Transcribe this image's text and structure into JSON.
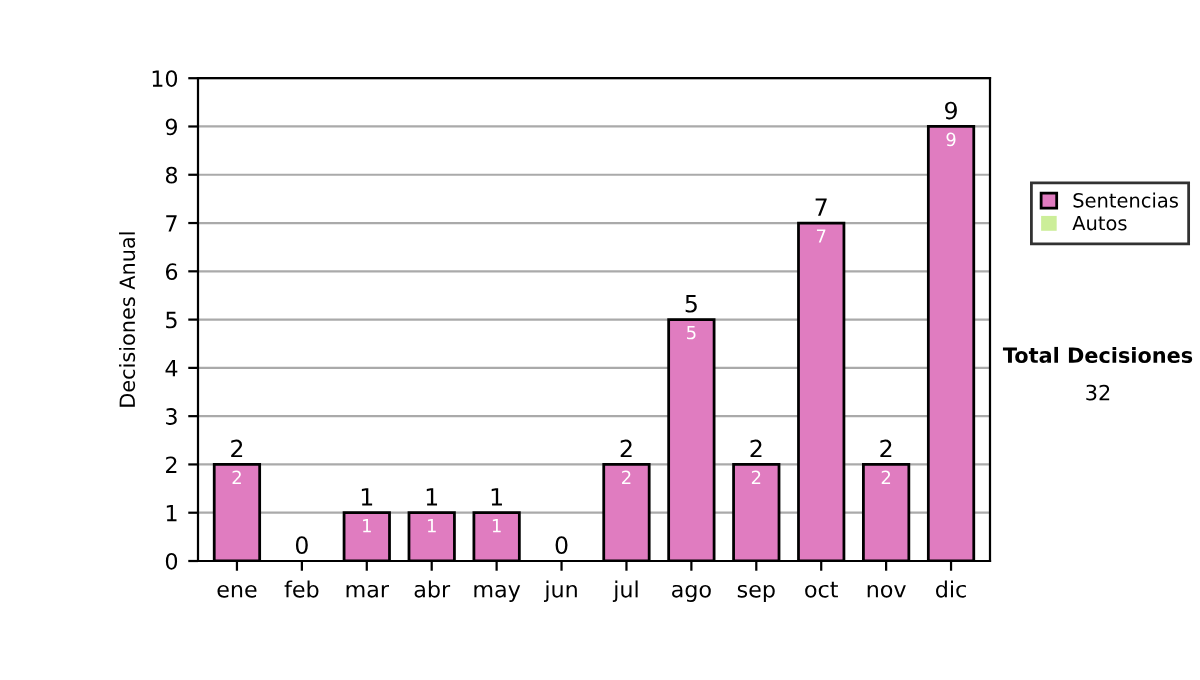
{
  "chart_data": {
    "type": "bar",
    "stacked": true,
    "ylabel": "Decisiones Anual",
    "categories": [
      "ene",
      "feb",
      "mar",
      "abr",
      "may",
      "jun",
      "jul",
      "ago",
      "sep",
      "oct",
      "nov",
      "dic"
    ],
    "series": [
      {
        "name": "Sentencias",
        "color": "#e07cc0",
        "values": [
          2,
          0,
          1,
          1,
          1,
          0,
          2,
          5,
          2,
          7,
          2,
          9
        ],
        "value_labels": [
          "2",
          null,
          "1",
          "1",
          "1",
          null,
          "2",
          "5",
          "2",
          "7",
          "2",
          "9"
        ]
      },
      {
        "name": "Autos",
        "color": "#ccee99",
        "values": [
          0,
          0,
          0,
          0,
          0,
          0,
          0,
          0,
          0,
          0,
          0,
          0
        ]
      }
    ],
    "totals": [
      "2",
      "0",
      "1",
      "1",
      "1",
      "0",
      "2",
      "5",
      "2",
      "7",
      "2",
      "9"
    ],
    "ylim": [
      0,
      10
    ],
    "yticks": [
      0,
      1,
      2,
      3,
      4,
      5,
      6,
      7,
      8,
      9,
      10
    ],
    "grid": "y",
    "legend": "right",
    "annotations": [
      "Total Decisiones",
      "32"
    ]
  }
}
